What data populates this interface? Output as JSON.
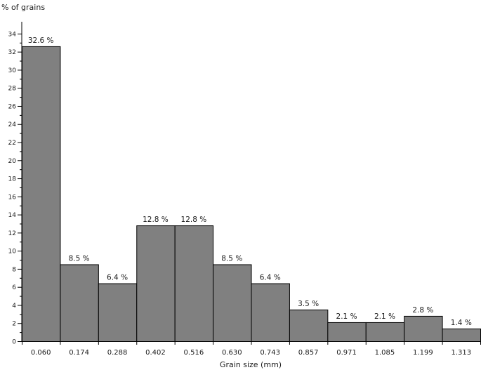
{
  "chart_data": {
    "type": "bar",
    "ylabel": "% of grains",
    "xlabel": "Grain size (mm)",
    "categories": [
      "0.060",
      "0.174",
      "0.288",
      "0.402",
      "0.516",
      "0.630",
      "0.743",
      "0.857",
      "0.971",
      "1.085",
      "1.199",
      "1.313"
    ],
    "values": [
      32.6,
      8.5,
      6.4,
      12.8,
      12.8,
      8.5,
      6.4,
      3.5,
      2.1,
      2.1,
      2.8,
      1.4
    ],
    "data_labels": [
      "32.6 %",
      "8.5 %",
      "6.4 %",
      "12.8 %",
      "12.8 %",
      "8.5 %",
      "6.4 %",
      "3.5 %",
      "2.1 %",
      "2.1 %",
      "2.8 %",
      "1.4 %"
    ],
    "ylim": [
      0,
      35
    ],
    "yticks": [
      0,
      2,
      4,
      6,
      8,
      10,
      12,
      14,
      16,
      18,
      20,
      22,
      24,
      26,
      28,
      30,
      32,
      34
    ],
    "grid": false,
    "bar_color": "#808080",
    "bar_edge_color": "#000000"
  }
}
